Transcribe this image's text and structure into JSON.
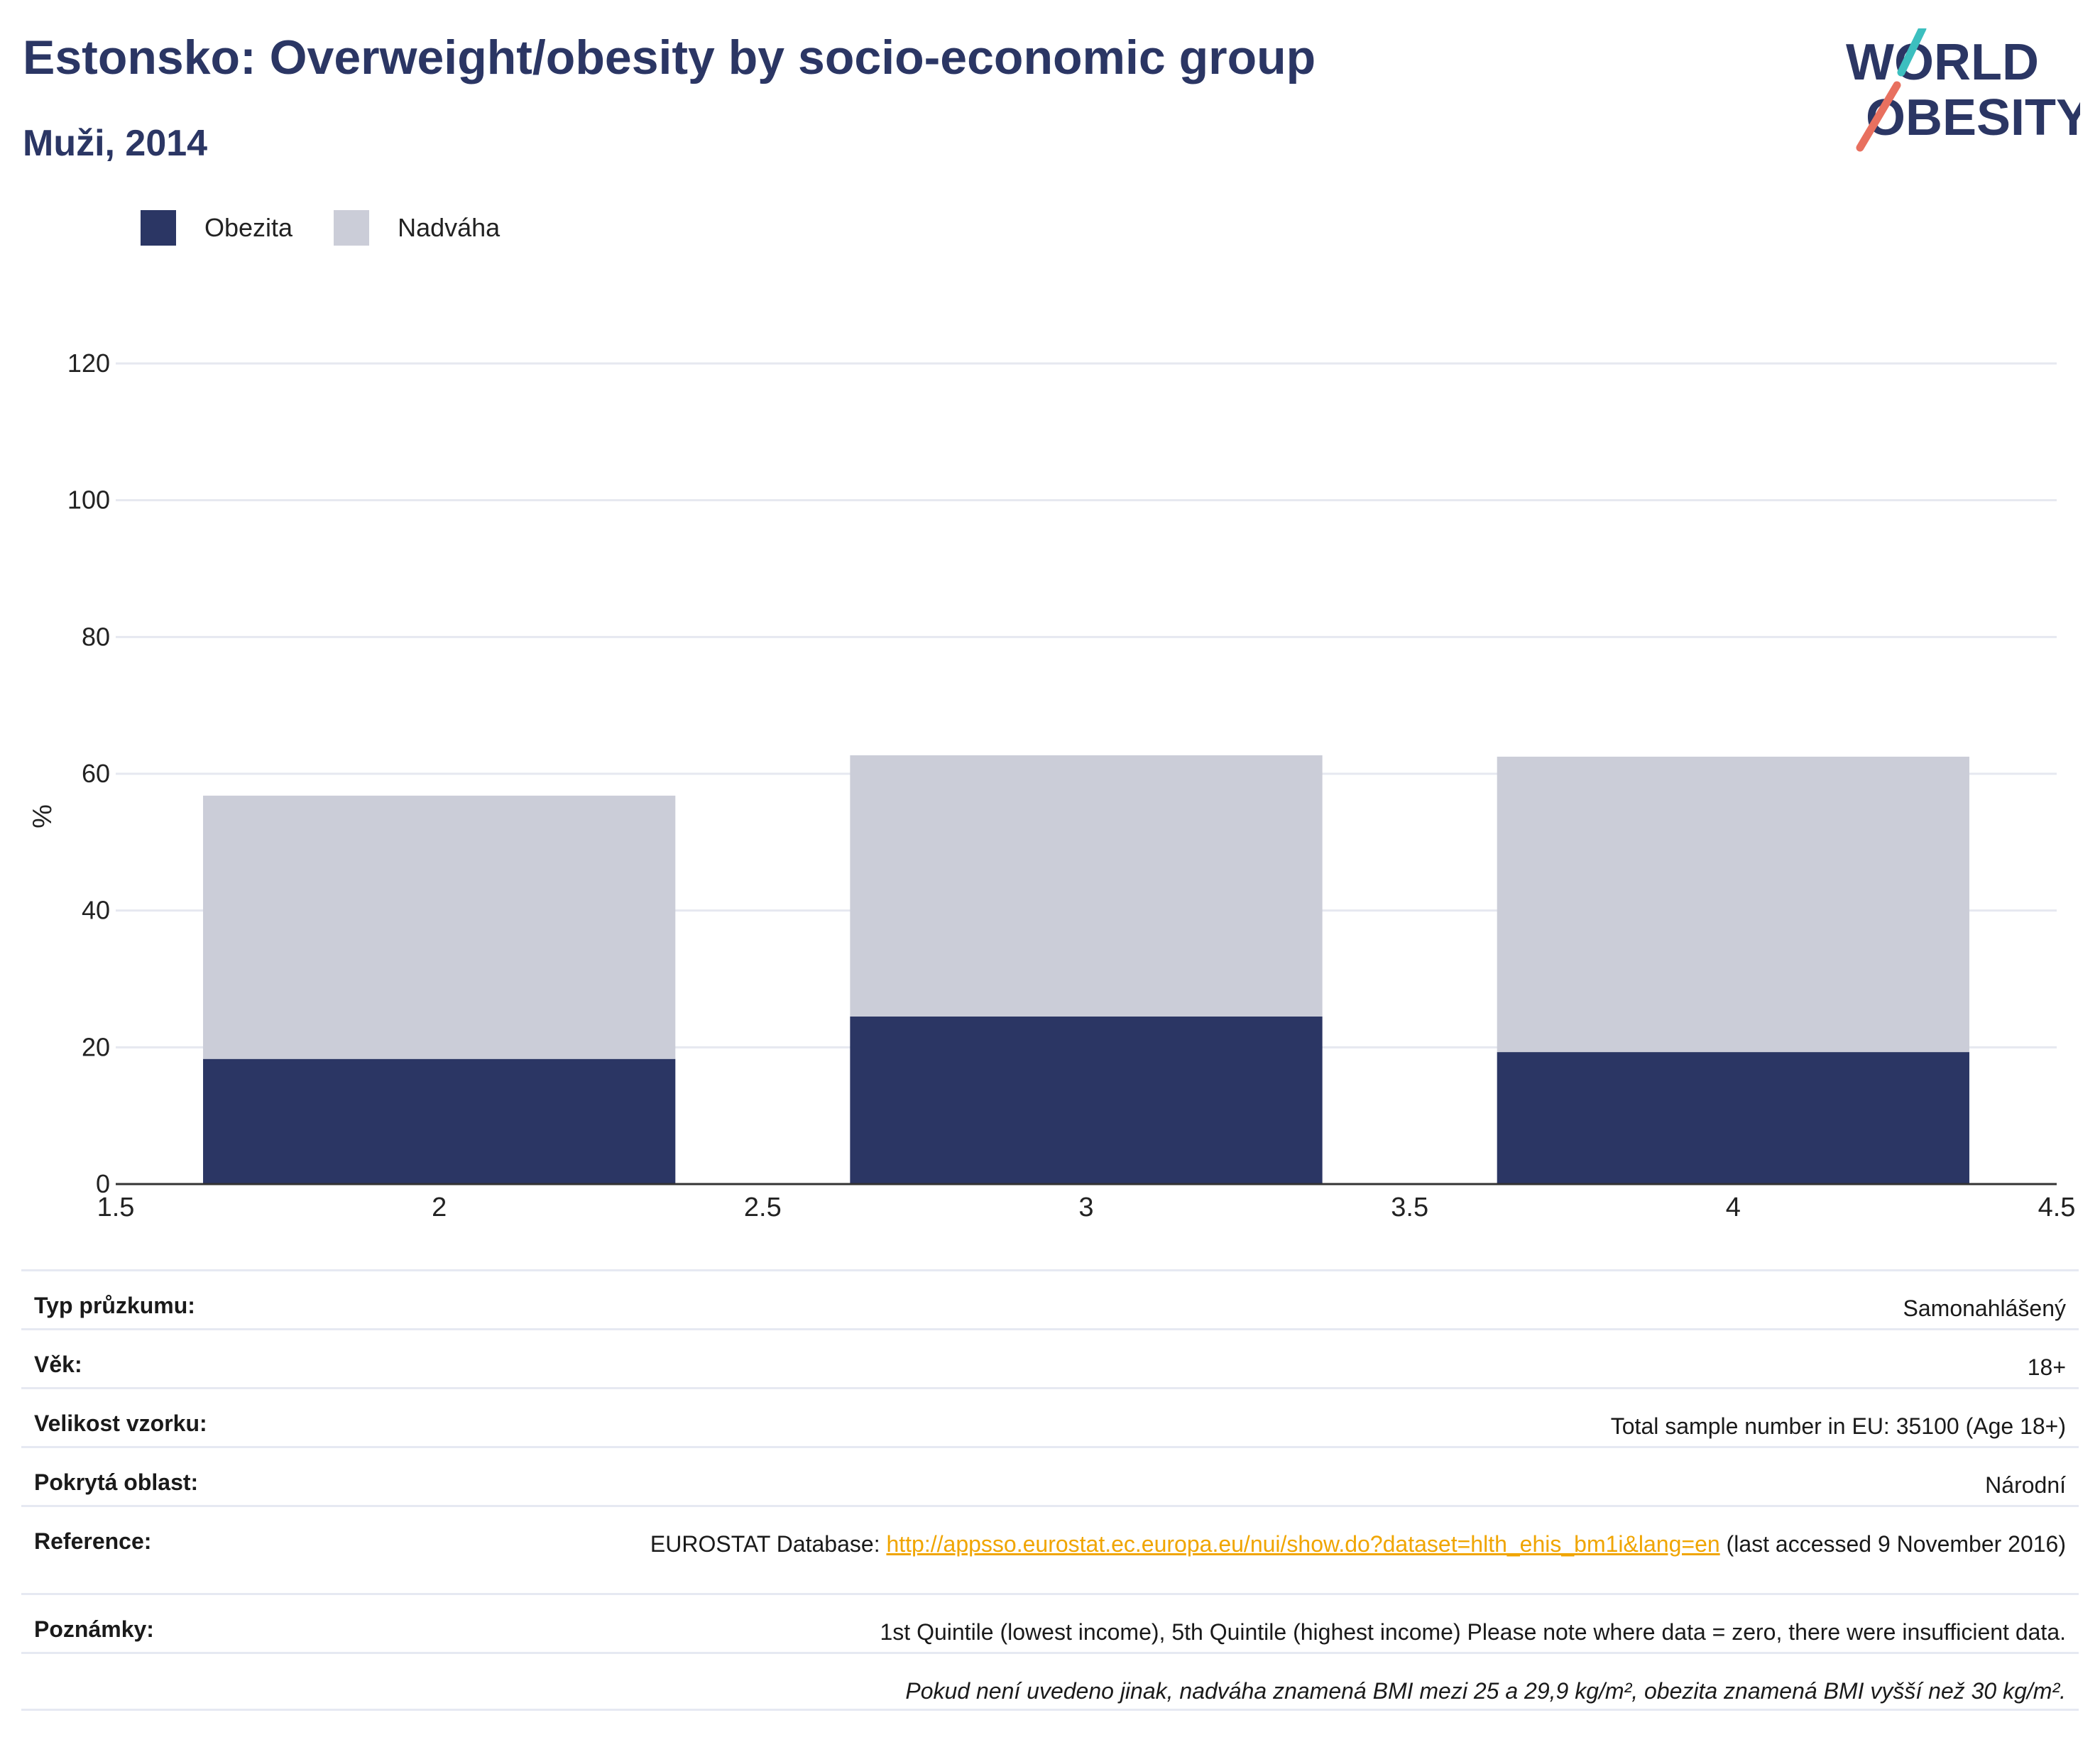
{
  "header": {
    "title": "Estonsko: Overweight/obesity by socio-economic group",
    "subtitle": "Muži, 2014"
  },
  "logo": {
    "line1": "WORLD",
    "line2": "OBESITY",
    "colors": {
      "text": "#2b3664",
      "slash_teal": "#3cbfbf",
      "slash_coral": "#e8705f"
    }
  },
  "colors": {
    "obesity": "#2b3664",
    "overweight": "#cbcdd8",
    "grid": "#e6e8f0",
    "axis": "#333333"
  },
  "chart_data": {
    "type": "bar",
    "stacked": true,
    "x": [
      2,
      3,
      4
    ],
    "bar_width": 0.73,
    "series": [
      {
        "name": "Obezita",
        "values": [
          18.3,
          24.5,
          19.3
        ]
      },
      {
        "name": "Nadváha",
        "values": [
          38.5,
          38.2,
          43.2
        ]
      }
    ],
    "xlim": [
      1.5,
      4.5
    ],
    "xticks": [
      "1.5",
      "2",
      "2.5",
      "3",
      "3.5",
      "4",
      "4.5"
    ],
    "ylim": [
      0,
      120
    ],
    "yticks": [
      "0",
      "20",
      "40",
      "60",
      "80",
      "100",
      "120"
    ],
    "ylabel": "%",
    "grid": true,
    "legend": "top-left"
  },
  "info": {
    "rows": [
      {
        "key": "Typ průzkumu:",
        "value": "Samonahlášený"
      },
      {
        "key": "Věk:",
        "value": "18+"
      },
      {
        "key": "Velikost vzorku:",
        "value": "Total sample number in EU: 35100 (Age 18+)"
      },
      {
        "key": "Pokrytá oblast:",
        "value": "Národní"
      }
    ],
    "reference": {
      "key": "Reference:",
      "prefix": "EUROSTAT Database: ",
      "link": "http://appsso.eurostat.ec.europa.eu/nui/show.do?dataset=hlth_ehis_bm1i&lang=en",
      "suffix": " (last accessed 9 November 2016)"
    },
    "notes": {
      "key": "Poznámky:",
      "value": "1st Quintile (lowest income), 5th Quintile (highest income) Please note where data = zero, there were insufficient data."
    },
    "footnote": "Pokud není uvedeno jinak, nadváha znamená BMI mezi 25 a 29,9 kg/m², obezita znamená BMI vyšší než 30 kg/m²."
  }
}
